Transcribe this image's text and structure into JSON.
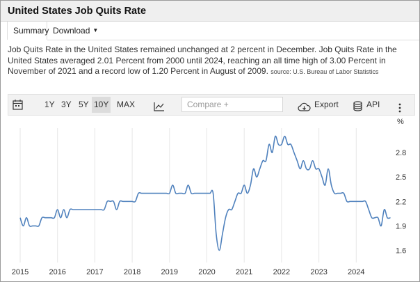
{
  "page": {
    "title": "United States Job Quits Rate",
    "tabs": {
      "summary": "Summary",
      "download": "Download"
    },
    "summary_text": "Job Quits Rate in the United States remained unchanged at 2 percent in December. Job Quits Rate in the United States averaged 2.01 Percent from 2000 until 2024, reaching an all time high of 3.00 Percent in November of 2021 and a record low of 1.20 Percent in August of 2009.",
    "source_text": "source: U.S. Bureau of Labor Statistics"
  },
  "toolbar": {
    "ranges": [
      "1Y",
      "3Y",
      "5Y",
      "10Y",
      "MAX"
    ],
    "selected_range": "10Y",
    "compare_placeholder": "Compare +",
    "export_label": "Export",
    "api_label": "API"
  },
  "colors": {
    "line": "#4f81bd",
    "grid": "#e6e6e6",
    "selected": "#dcdcdc"
  },
  "chart_data": {
    "type": "line",
    "title": "United States Job Quits Rate",
    "ylabel": "%",
    "xlabel": "",
    "xlim": [
      2015.0,
      2025.0
    ],
    "ylim": [
      1.45,
      3.1
    ],
    "yticks": [
      1.6,
      1.9,
      2.2,
      2.5,
      2.8
    ],
    "xticks": [
      2015,
      2016,
      2017,
      2018,
      2019,
      2020,
      2021,
      2022,
      2023,
      2024
    ],
    "grid": "vertical",
    "legend": "none",
    "series": [
      {
        "name": "Job Quits Rate",
        "x": [
          2015.0,
          2015.083,
          2015.167,
          2015.25,
          2015.333,
          2015.417,
          2015.5,
          2015.583,
          2015.667,
          2015.75,
          2015.833,
          2015.917,
          2016.0,
          2016.083,
          2016.167,
          2016.25,
          2016.333,
          2016.417,
          2016.5,
          2016.583,
          2016.667,
          2016.75,
          2016.833,
          2016.917,
          2017.0,
          2017.083,
          2017.167,
          2017.25,
          2017.333,
          2017.417,
          2017.5,
          2017.583,
          2017.667,
          2017.75,
          2017.833,
          2017.917,
          2018.0,
          2018.083,
          2018.167,
          2018.25,
          2018.333,
          2018.417,
          2018.5,
          2018.583,
          2018.667,
          2018.75,
          2018.833,
          2018.917,
          2019.0,
          2019.083,
          2019.167,
          2019.25,
          2019.333,
          2019.417,
          2019.5,
          2019.583,
          2019.667,
          2019.75,
          2019.833,
          2019.917,
          2020.0,
          2020.083,
          2020.167,
          2020.25,
          2020.333,
          2020.417,
          2020.5,
          2020.583,
          2020.667,
          2020.75,
          2020.833,
          2020.917,
          2021.0,
          2021.083,
          2021.167,
          2021.25,
          2021.333,
          2021.417,
          2021.5,
          2021.583,
          2021.667,
          2021.75,
          2021.833,
          2021.917,
          2022.0,
          2022.083,
          2022.167,
          2022.25,
          2022.333,
          2022.417,
          2022.5,
          2022.583,
          2022.667,
          2022.75,
          2022.833,
          2022.917,
          2023.0,
          2023.083,
          2023.167,
          2023.25,
          2023.333,
          2023.417,
          2023.5,
          2023.583,
          2023.667,
          2023.75,
          2023.833,
          2023.917,
          2024.0,
          2024.083,
          2024.167,
          2024.25,
          2024.333,
          2024.417,
          2024.5,
          2024.583,
          2024.667,
          2024.75,
          2024.833,
          2024.917
        ],
        "y": [
          2.0,
          1.9,
          2.0,
          1.9,
          1.9,
          1.9,
          1.9,
          2.0,
          2.0,
          2.0,
          2.0,
          2.0,
          2.1,
          2.0,
          2.1,
          2.0,
          2.1,
          2.1,
          2.1,
          2.1,
          2.1,
          2.1,
          2.1,
          2.1,
          2.1,
          2.1,
          2.1,
          2.1,
          2.2,
          2.2,
          2.2,
          2.1,
          2.2,
          2.2,
          2.2,
          2.2,
          2.2,
          2.2,
          2.3,
          2.3,
          2.3,
          2.3,
          2.3,
          2.3,
          2.3,
          2.3,
          2.3,
          2.3,
          2.3,
          2.4,
          2.3,
          2.3,
          2.3,
          2.3,
          2.4,
          2.3,
          2.3,
          2.3,
          2.3,
          2.3,
          2.3,
          2.3,
          2.3,
          1.8,
          1.6,
          1.8,
          2.0,
          2.1,
          2.1,
          2.2,
          2.3,
          2.3,
          2.4,
          2.3,
          2.4,
          2.6,
          2.5,
          2.6,
          2.7,
          2.7,
          2.9,
          2.8,
          3.0,
          2.9,
          2.9,
          3.0,
          2.9,
          2.9,
          2.8,
          2.7,
          2.6,
          2.7,
          2.6,
          2.6,
          2.7,
          2.6,
          2.6,
          2.5,
          2.4,
          2.6,
          2.4,
          2.3,
          2.3,
          2.3,
          2.3,
          2.2,
          2.2,
          2.2,
          2.2,
          2.2,
          2.2,
          2.2,
          2.1,
          2.0,
          2.0,
          2.0,
          1.9,
          2.1,
          2.0,
          2.0
        ]
      }
    ]
  }
}
